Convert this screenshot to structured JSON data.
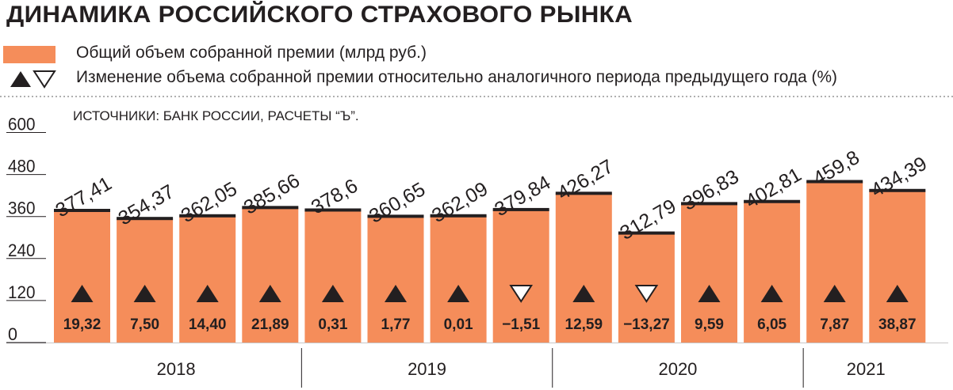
{
  "title": "ДИНАМИКА РОССИЙСКОГО СТРАХОВОГО РЫНКА",
  "legend": {
    "premium_label": "Общий объем собранной премии (млрд руб.)",
    "change_label": "Изменение объема собранной премии относительно аналогичного периода предыдущего года (%)"
  },
  "source": "ИСТОЧНИКИ: БАНК РОССИИ, РАСЧЕТЫ “Ъ”.",
  "colors": {
    "bar": "#f58d5a",
    "bar_cap": "#231f20",
    "text": "#231f20"
  },
  "chart_data": {
    "type": "bar",
    "ylim": [
      0,
      600
    ],
    "yticks": [
      "0",
      "120",
      "240",
      "360",
      "480",
      "600"
    ],
    "categories": [
      "2018",
      "2018",
      "2018",
      "2018",
      "2019",
      "2019",
      "2019",
      "2019",
      "2020",
      "2020",
      "2020",
      "2020",
      "2021",
      "2021"
    ],
    "values": [
      377.41,
      354.37,
      362.05,
      385.66,
      378.6,
      360.65,
      362.09,
      379.84,
      426.27,
      312.79,
      396.83,
      402.81,
      459.8,
      434.39
    ],
    "value_labels": [
      "377,41",
      "354,37",
      "362,05",
      "385,66",
      "378,6",
      "360,65",
      "362,09",
      "379,84",
      "426,27",
      "312,79",
      "396,83",
      "402,81",
      "459,8",
      "434,39"
    ],
    "change_values": [
      19.32,
      7.5,
      14.4,
      21.89,
      0.31,
      1.77,
      0.01,
      -1.51,
      12.59,
      -13.27,
      9.59,
      6.05,
      7.87,
      38.87
    ],
    "change_labels": [
      "19,32",
      "7,50",
      "14,40",
      "21,89",
      "0,31",
      "1,77",
      "0,01",
      "−1,51",
      "12,59",
      "−13,27",
      "9,59",
      "6,05",
      "7,87",
      "38,87"
    ],
    "years": [
      "2018",
      "2019",
      "2020",
      "2021"
    ]
  }
}
